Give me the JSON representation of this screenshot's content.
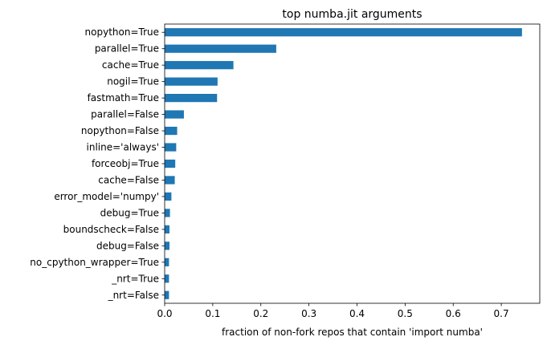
{
  "chart_data": {
    "type": "bar",
    "orientation": "horizontal",
    "title": "top numba.jit arguments",
    "xlabel": "fraction of non-fork repos that contain 'import numba'",
    "ylabel": "",
    "xlim": [
      0,
      0.78
    ],
    "xticks": [
      "0.0",
      "0.1",
      "0.2",
      "0.3",
      "0.4",
      "0.5",
      "0.6",
      "0.7"
    ],
    "xtick_values": [
      0.0,
      0.1,
      0.2,
      0.3,
      0.4,
      0.5,
      0.6,
      0.7
    ],
    "categories": [
      "nopython=True",
      "parallel=True",
      "cache=True",
      "nogil=True",
      "fastmath=True",
      "parallel=False",
      "nopython=False",
      "inline='always'",
      "forceobj=True",
      "cache=False",
      "error_model='numpy'",
      "debug=True",
      "boundscheck=False",
      "debug=False",
      "no_cpython_wrapper=True",
      "_nrt=True",
      "_nrt=False"
    ],
    "values": [
      0.743,
      0.232,
      0.143,
      0.11,
      0.109,
      0.04,
      0.026,
      0.024,
      0.022,
      0.021,
      0.014,
      0.011,
      0.01,
      0.01,
      0.009,
      0.009,
      0.009
    ],
    "bar_color": "#1f77b4",
    "grid": false,
    "legend": false
  }
}
